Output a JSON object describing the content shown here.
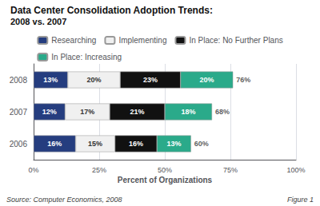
{
  "chart_data": {
    "type": "bar",
    "orientation": "horizontal",
    "stacked": true,
    "data_labels": true,
    "title": "Data Center Consolidation Adoption Trends:",
    "subtitle": "2008 vs. 2007",
    "categories": [
      "2008",
      "2007",
      "2006"
    ],
    "series": [
      {
        "name": "Researching",
        "color": "#253d7f",
        "values": [
          13,
          12,
          16
        ],
        "value_labels": [
          "13%",
          "12%",
          "16%"
        ]
      },
      {
        "name": "Implementing",
        "color": "#f0f0f0",
        "values": [
          20,
          17,
          15
        ],
        "value_labels": [
          "20%",
          "17%",
          "15%"
        ]
      },
      {
        "name": "In Place: No Further Plans",
        "color": "#111111",
        "values": [
          23,
          21,
          16
        ],
        "value_labels": [
          "23%",
          "21%",
          "16%"
        ]
      },
      {
        "name": "In Place: Increasing",
        "color": "#2aaa8a",
        "values": [
          20,
          18,
          13
        ],
        "value_labels": [
          "20%",
          "18%",
          "13%"
        ]
      }
    ],
    "totals": [
      76,
      68,
      60
    ],
    "total_labels": [
      "76%",
      "68%",
      "60%"
    ],
    "xlabel": "Percent of Organizations",
    "xlim": [
      0,
      100
    ],
    "xticks": [
      {
        "value": 0,
        "label": "0%"
      },
      {
        "value": 25,
        "label": "25%"
      },
      {
        "value": 50,
        "label": "50%"
      },
      {
        "value": 75,
        "label": "75%"
      },
      {
        "value": 100,
        "label": "100%"
      }
    ],
    "grid": true,
    "legend": "top",
    "annotations": [
      "Source: Computer Economics, 2008",
      "Figure 1"
    ]
  }
}
